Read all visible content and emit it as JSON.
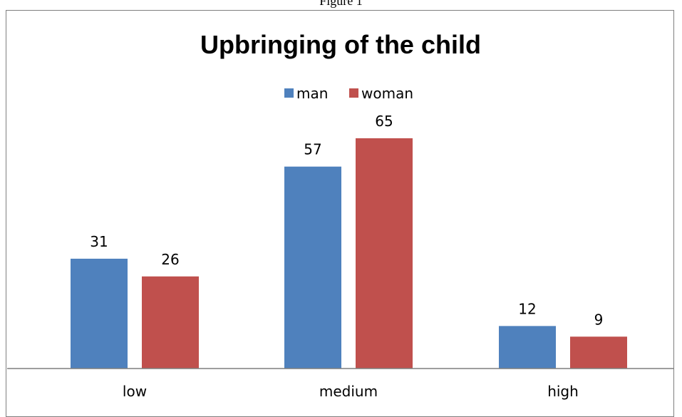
{
  "figure_caption": "Figure 1",
  "chart_data": {
    "type": "bar",
    "title": "Upbringing of the child",
    "categories": [
      "low",
      "medium",
      "high"
    ],
    "series": [
      {
        "name": "man",
        "values": [
          31,
          57,
          12
        ],
        "color": "#4F81BD"
      },
      {
        "name": "woman",
        "values": [
          26,
          65,
          9
        ],
        "color": "#C0504D"
      }
    ],
    "legend_position": "top",
    "data_labels": true,
    "grid": false,
    "ylim": [
      0,
      65
    ]
  }
}
